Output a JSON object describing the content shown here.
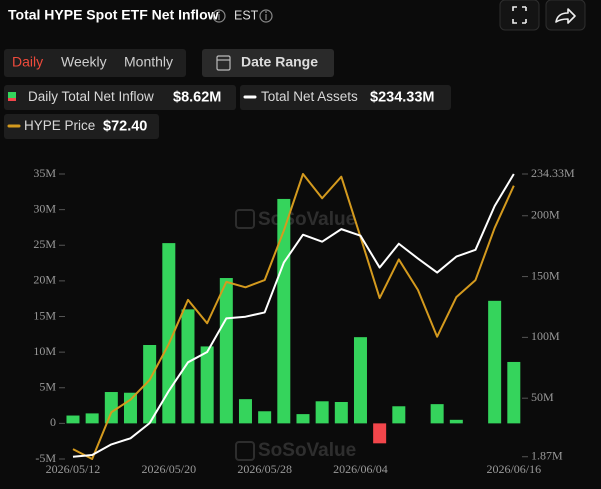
{
  "header": {
    "title": "Total HYPE Spot ETF Net Inflow",
    "timezone": "EST"
  },
  "controls": {
    "periods": [
      "Daily",
      "Weekly",
      "Monthly"
    ],
    "active_period": 0,
    "date_range": "Date Range"
  },
  "chart_data": {
    "type": "bar",
    "watermark": "SoSoValue",
    "categories": [
      "2026/05/12",
      null,
      null,
      null,
      null,
      "2026/05/20",
      null,
      null,
      null,
      null,
      "2026/05/28",
      null,
      null,
      null,
      null,
      "2026/06/04",
      null,
      null,
      null,
      null,
      null,
      null,
      null,
      "2026/06/16"
    ],
    "series": [
      {
        "name": "Daily Total Net Inflow",
        "type": "bar",
        "color": "#35d45c",
        "negative_color": "#f2464b",
        "latest_label": "$8.62M",
        "values": [
          1.1,
          1.4,
          4.4,
          4.3,
          11.0,
          25.3,
          16.0,
          10.8,
          20.4,
          3.4,
          1.7,
          31.5,
          1.3,
          3.1,
          3.0,
          12.1,
          -2.8,
          2.4,
          0,
          2.7,
          0.5,
          0,
          17.2,
          8.62
        ]
      },
      {
        "name": "Total Net Assets",
        "type": "line",
        "axis": "y2",
        "color": "#ffffff",
        "latest_label": "$234.33M",
        "values": [
          1.87,
          3.3,
          12,
          17,
          29.5,
          56,
          79.5,
          88,
          115.6,
          117,
          120.5,
          161.5,
          184.4,
          178.7,
          189,
          183.6,
          157.4,
          177,
          164.8,
          153.3,
          166.4,
          172,
          208,
          234.33
        ]
      },
      {
        "name": "HYPE Price",
        "type": "line",
        "axis": "y3",
        "color": "#d49a1e",
        "latest_label": "$72.40",
        "values": [
          43.1,
          42.0,
          47.2,
          48.6,
          50.8,
          54.8,
          59.7,
          57.1,
          61.7,
          61.1,
          61.9,
          67.4,
          73.7,
          71.0,
          73.4,
          66.7,
          59.9,
          64.2,
          60.8,
          55.6,
          60.0,
          61.9,
          67.7,
          72.4
        ]
      }
    ],
    "ylim": [
      -5,
      35
    ],
    "yticks": [
      {
        "value": -5,
        "label": "-5M"
      },
      0,
      {
        "value": 5,
        "label": "5M"
      },
      {
        "value": 10,
        "label": "10M"
      },
      {
        "value": 15,
        "label": "15M"
      },
      {
        "value": 20,
        "label": "20M"
      },
      {
        "value": 25,
        "label": "25M"
      },
      {
        "value": 30,
        "label": "30M"
      },
      {
        "value": 35,
        "label": "35M"
      }
    ],
    "y2lim": [
      0,
      234.33
    ],
    "y2ticks": [
      {
        "value": 1.87,
        "label": "1.87M"
      },
      {
        "value": 50,
        "label": "50M"
      },
      {
        "value": 100,
        "label": "100M"
      },
      {
        "value": 150,
        "label": "150M"
      },
      {
        "value": 200,
        "label": "200M"
      },
      {
        "value": 234.33,
        "label": "234.33M"
      }
    ],
    "y3lim": [
      42,
      73.7
    ],
    "grid": false
  }
}
